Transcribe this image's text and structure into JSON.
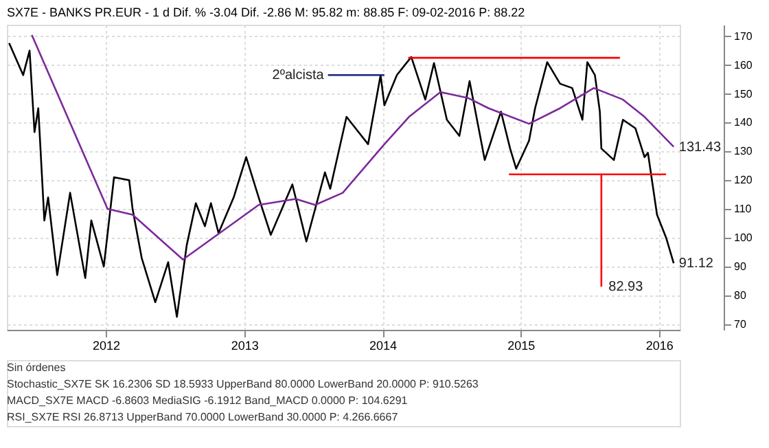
{
  "chart_data": {
    "type": "line",
    "title": "SX7E - BANKS PR.EUR - 1 d Dif. % -3.04 Dif. -2.86 M: 95.82 m: 88.85 F: 09-02-2016 P: 88.22",
    "xlim": [
      "2011-04-15",
      "2016-02-25"
    ],
    "xticks": [
      {
        "value": "2012-01-01",
        "label": "2012"
      },
      {
        "value": "2013-01-01",
        "label": "2013"
      },
      {
        "value": "2014-01-01",
        "label": "2014"
      },
      {
        "value": "2015-01-01",
        "label": "2015"
      },
      {
        "value": "2016-01-01",
        "label": "2016"
      }
    ],
    "ylim": [
      68,
      174
    ],
    "yticks": [
      70,
      80,
      90,
      100,
      110,
      120,
      130,
      140,
      150,
      160,
      170
    ],
    "grid": true,
    "marker": "none",
    "line_style": "solid",
    "series": [
      {
        "color": "#000000",
        "x": [
          "2011-04-21",
          "2011-05-28",
          "2011-06-14",
          "2011-06-27",
          "2011-07-07",
          "2011-07-23",
          "2011-08-02",
          "2011-08-26",
          "2011-09-29",
          "2011-11-08",
          "2011-11-24",
          "2011-12-27",
          "2012-01-23",
          "2012-03-03",
          "2012-03-12",
          "2012-04-05",
          "2012-05-11",
          "2012-06-14",
          "2012-07-07",
          "2012-08-02",
          "2012-08-26",
          "2012-09-19",
          "2012-10-05",
          "2012-10-25",
          "2012-12-04",
          "2013-01-06",
          "2013-02-08",
          "2013-03-12",
          "2013-05-08",
          "2013-06-14",
          "2013-08-02",
          "2013-08-16",
          "2013-09-28",
          "2013-11-24",
          "2013-12-27",
          "2014-01-06",
          "2014-02-08",
          "2014-03-18",
          "2014-04-24",
          "2014-05-17",
          "2014-06-20",
          "2014-07-23",
          "2014-08-19",
          "2014-09-28",
          "2014-11-10",
          "2014-12-04",
          "2014-12-20",
          "2015-01-23",
          "2015-02-08",
          "2015-03-12",
          "2015-04-15",
          "2015-05-17",
          "2015-06-13",
          "2015-06-26",
          "2015-07-16",
          "2015-07-29",
          "2015-08-02",
          "2015-09-04",
          "2015-09-28",
          "2015-10-31",
          "2015-11-24",
          "2015-12-03",
          "2015-12-27",
          "2016-01-20",
          "2016-02-09"
        ],
        "values": [
          167.6,
          156.5,
          165,
          136.7,
          145,
          106,
          114,
          87,
          115.6,
          86,
          106,
          90,
          121,
          120,
          110,
          93,
          77.6,
          91.5,
          72.5,
          97.4,
          112,
          104,
          112,
          101.6,
          114,
          128,
          114,
          101,
          118.5,
          98.7,
          122.7,
          117,
          142,
          132.5,
          156.5,
          146,
          156.5,
          162.8,
          148,
          160.7,
          141,
          135.4,
          154.4,
          127,
          143.8,
          131,
          124,
          133.7,
          145,
          161,
          153.5,
          152,
          141,
          161,
          156.5,
          143.8,
          131,
          127,
          141,
          138,
          128,
          129.5,
          108,
          100,
          91.12
        ]
      },
      {
        "color": "#7b2a9a",
        "x": [
          "2011-06-20",
          "2012-01-06",
          "2012-03-12",
          "2012-07-23",
          "2013-02-08",
          "2013-05-17",
          "2013-07-07",
          "2013-09-18",
          "2014-01-06",
          "2014-03-12",
          "2014-06-03",
          "2014-08-16",
          "2014-10-08",
          "2015-01-23",
          "2015-04-15",
          "2015-07-13",
          "2015-09-28",
          "2015-11-24",
          "2016-02-09"
        ],
        "values": [
          170.4,
          110,
          108,
          92.4,
          111.4,
          113.5,
          111.4,
          115.6,
          132.5,
          142,
          150.6,
          148.5,
          145,
          139.6,
          145,
          152,
          148,
          142,
          131.6
        ]
      },
      {
        "color": "#ff0000",
        "x": [
          "2014-03-10",
          "2015-09-20"
        ],
        "values": [
          162.5,
          162.5
        ]
      },
      {
        "color": "#ff0000",
        "x": [
          "2014-12-01",
          "2016-01-20"
        ],
        "values": [
          122,
          122
        ]
      },
      {
        "color": "#ff0000",
        "x": [
          "2015-08-02",
          "2015-08-02"
        ],
        "values": [
          122,
          83
        ]
      },
      {
        "color": "#1a237e",
        "x": [
          "2013-08-10",
          "2014-01-06"
        ],
        "values": [
          156.5,
          156.5
        ]
      }
    ],
    "annotations": [
      {
        "text": "2ºalcista",
        "x": "2013-08-10",
        "y": 156.5
      },
      {
        "text": "82.93",
        "x": "2015-08-10",
        "y": 83
      },
      {
        "text": "131.43",
        "x": "2016-02-12",
        "y": 131.43
      },
      {
        "text": "91.12",
        "x": "2016-02-12",
        "y": 91.12
      },
      "Sin órdenes",
      "Stochastic_SX7E SK 16.2306 SD 18.5933 UpperBand 80.0000 LowerBand 20.0000 P: 910.5263",
      "MACD_SX7E MACD -6.8603 MediaSIG -6.1912 Band_MACD 0.0000 P: 104.6291",
      "RSI_SX7E RSI 26.8713 UpperBand 70.0000 LowerBand 30.0000 P: 4.266.6667"
    ]
  }
}
